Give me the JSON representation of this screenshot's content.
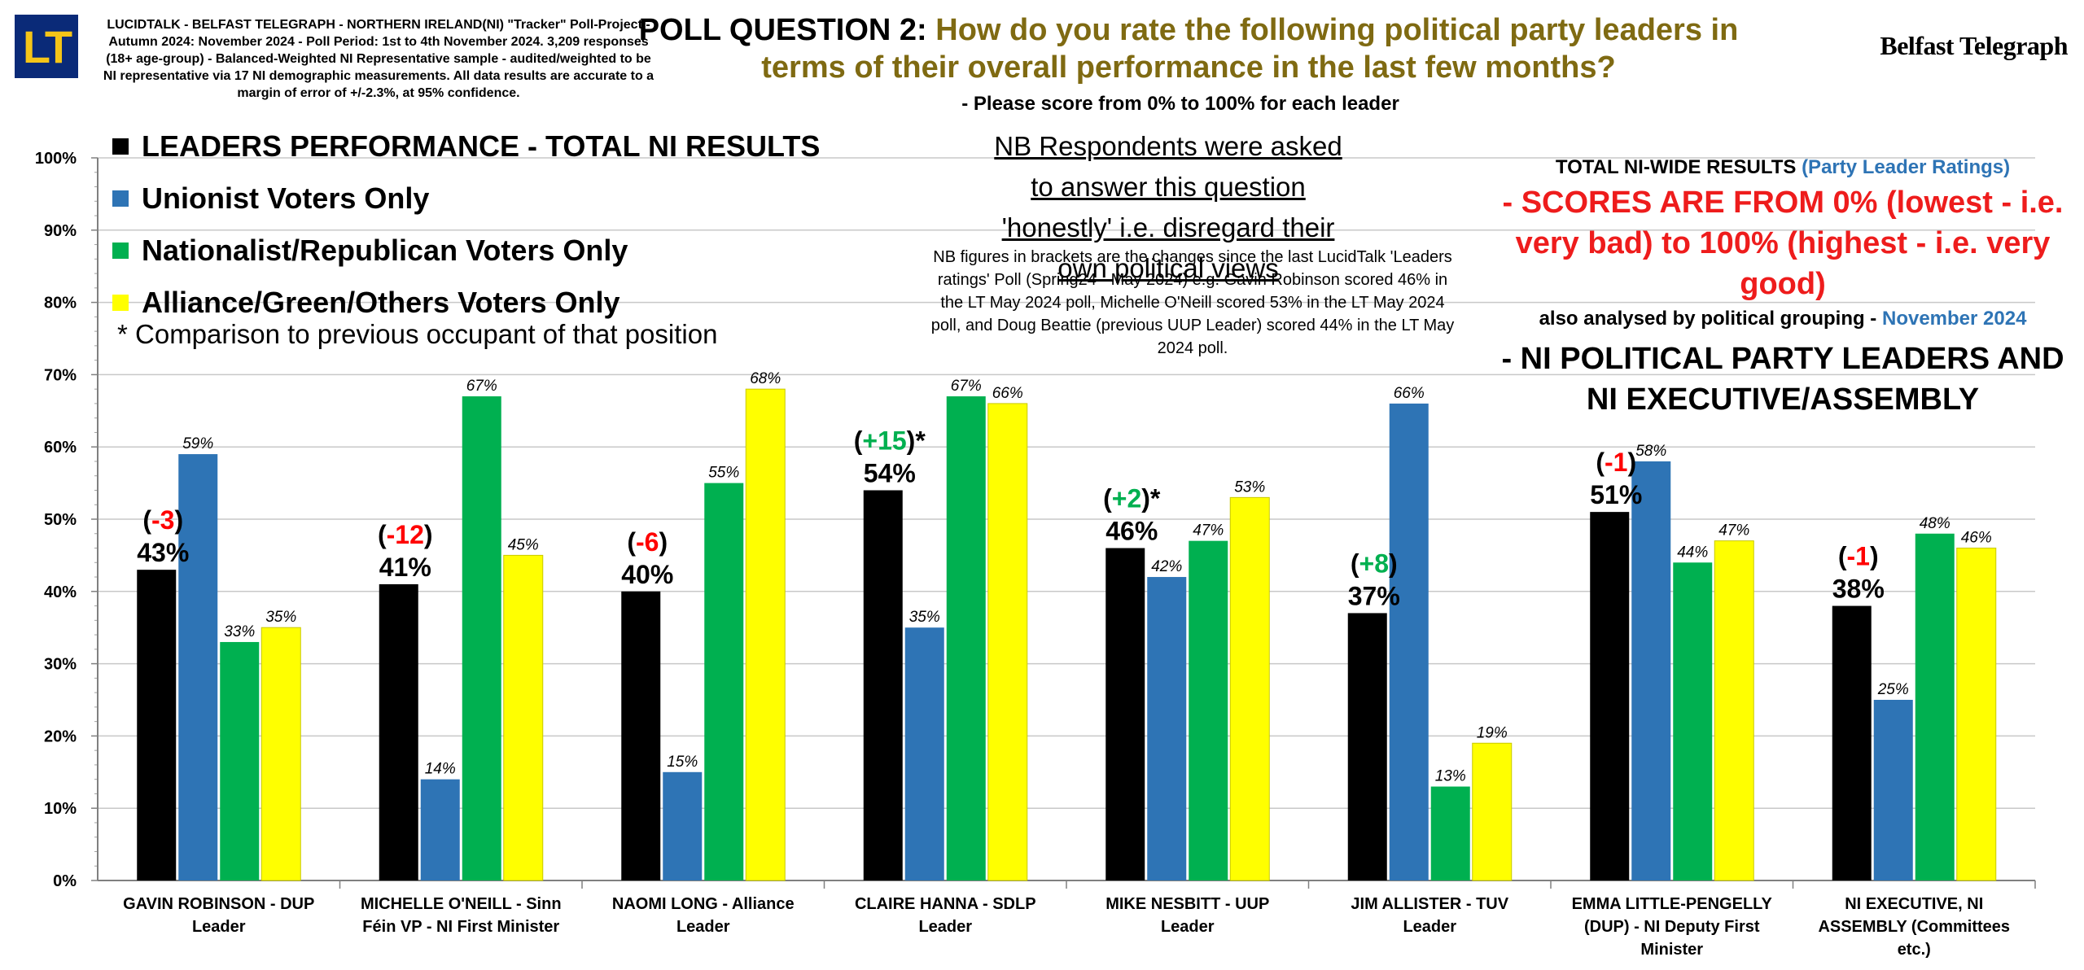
{
  "logo": "LT",
  "methodology": "LUCIDTALK - BELFAST TELEGRAPH - NORTHERN IRELAND(NI) \"Tracker\" Poll-Project - Autumn 2024: November 2024 - Poll Period: 1st to 4th November 2024. 3,209 responses (18+ age-group) - Balanced-Weighted NI Representative sample - audited/weighted to be NI representative via 17 NI demographic measurements. All data results are accurate to a margin of error of +/-2.3%, at 95% confidence.",
  "question_label": "POLL QUESTION 2:",
  "question_text": "How do you rate the following political party leaders in terms of their overall performance in the last few months?",
  "question_sub": "- Please score from 0% to 100% for each leader",
  "publisher": "Belfast Telegraph",
  "legend_note": "* Comparison to previous occupant of that position",
  "nb_box": "NB Respondents were asked to answer this question 'honestly' i.e. disregard their own political views",
  "nb_small": "NB figures in brackets are the changes since the last LucidTalk 'Leaders ratings' Poll (Spring24 - May 2024) e.g. Gavin Robinson scored 46% in the LT May 2024 poll, Michelle O'Neill scored 53% in the LT May 2024 poll, and Doug Beattie (previous UUP Leader) scored 44% in the LT May 2024 poll.",
  "right_block": {
    "line1_main": "TOTAL NI-WIDE RESULTS",
    "line1_sub": "(Party Leader Ratings)",
    "line2": "- SCORES ARE FROM 0% (lowest - i.e. very bad) to 100% (highest - i.e. very good)",
    "line3_main": "also analysed by political grouping -",
    "line3_date": "November 2024",
    "line4": "- NI POLITICAL PARTY LEADERS AND NI EXECUTIVE/ASSEMBLY"
  },
  "colors": {
    "total": "#000000",
    "unionist": "#2e74b5",
    "nationalist": "#00b050",
    "alliance": "#ffff00",
    "change_negative": "#ff0000",
    "change_positive": "#00b050",
    "title_gold": "#7f6a12"
  },
  "chart_data": {
    "type": "bar",
    "ylim": [
      0,
      100
    ],
    "y_unit": "%",
    "y_ticks": [
      "0%",
      "10%",
      "20%",
      "30%",
      "40%",
      "50%",
      "60%",
      "70%",
      "80%",
      "90%",
      "100%"
    ],
    "grid": true,
    "categories": [
      [
        "GAVIN ROBINSON - DUP",
        "Leader"
      ],
      [
        "MICHELLE O'NEILL - Sinn",
        "Féin VP - NI First Minister"
      ],
      [
        "NAOMI LONG - Alliance",
        "Leader"
      ],
      [
        "CLAIRE HANNA - SDLP",
        "Leader"
      ],
      [
        "MIKE NESBITT - UUP",
        "Leader"
      ],
      [
        "JIM ALLISTER - TUV",
        "Leader"
      ],
      [
        "EMMA LITTLE-PENGELLY",
        "(DUP) - NI Deputy First",
        "Minister"
      ],
      [
        "NI EXECUTIVE, NI",
        "ASSEMBLY (Committees",
        "etc.)"
      ]
    ],
    "series": [
      {
        "name": "LEADERS PERFORMANCE - TOTAL NI RESULTS",
        "color": "#000000",
        "values": [
          43,
          41,
          40,
          54,
          46,
          37,
          51,
          38
        ]
      },
      {
        "name": "Unionist Voters Only",
        "color": "#2e74b5",
        "values": [
          59,
          14,
          15,
          35,
          42,
          66,
          58,
          25
        ]
      },
      {
        "name": "Nationalist/Republican Voters Only",
        "color": "#00b050",
        "values": [
          33,
          67,
          55,
          67,
          47,
          13,
          44,
          48
        ]
      },
      {
        "name": "Alliance/Green/Others Voters Only",
        "color": "#ffff00",
        "values": [
          35,
          45,
          68,
          66,
          53,
          19,
          47,
          46
        ]
      }
    ],
    "total_labels": [
      "43%",
      "41%",
      "40%",
      "54%",
      "46%",
      "37%",
      "51%",
      "38%"
    ],
    "changes": [
      "-3",
      "-12",
      "-6",
      "+15",
      "+2",
      "+8",
      "-1",
      "-1"
    ],
    "change_asterisk": [
      false,
      false,
      false,
      true,
      true,
      false,
      false,
      false
    ]
  }
}
